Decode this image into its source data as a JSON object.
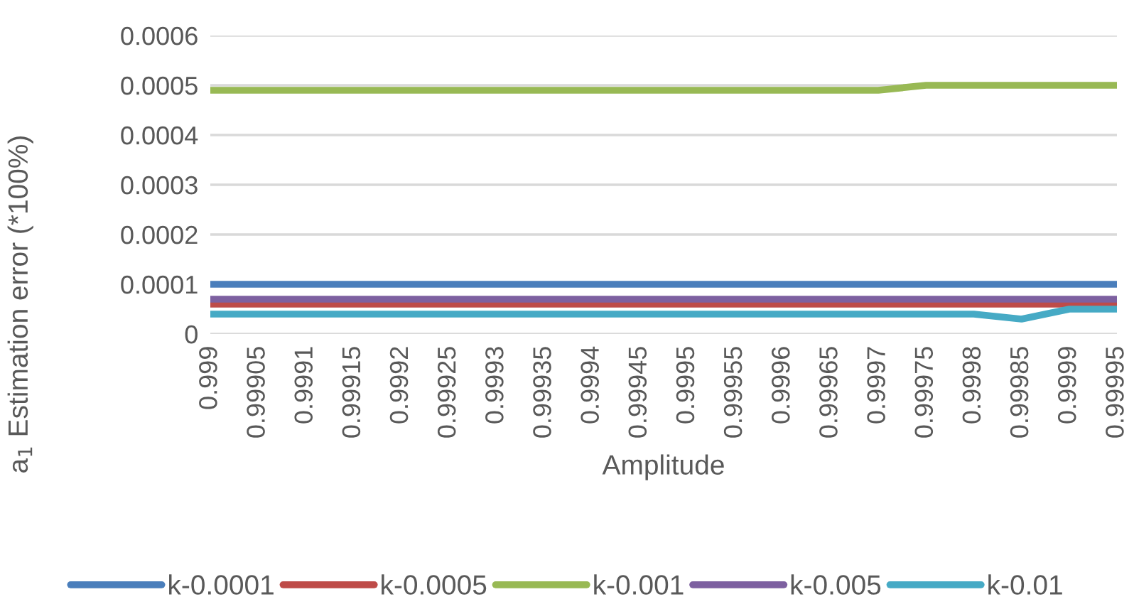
{
  "chart_data": {
    "type": "line",
    "xlabel": "Amplitude",
    "ylabel": "a$_{1}$ Estimation error (*100%)",
    "categories": [
      "0.999",
      "0.99905",
      "0.9991",
      "0.99915",
      "0.9992",
      "0.99925",
      "0.9993",
      "0.99935",
      "0.9994",
      "0.99945",
      "0.9995",
      "0.99955",
      "0.9996",
      "0.99965",
      "0.9997",
      "0.99975",
      "0.9998",
      "0.99985",
      "0.9999",
      "0.99995"
    ],
    "series": [
      {
        "name": "k-0.0001",
        "color": "#4a7ebb",
        "values": [
          0.0001,
          0.0001,
          0.0001,
          0.0001,
          0.0001,
          0.0001,
          0.0001,
          0.0001,
          0.0001,
          0.0001,
          0.0001,
          0.0001,
          0.0001,
          0.0001,
          0.0001,
          0.0001,
          0.0001,
          0.0001,
          0.0001,
          0.0001
        ]
      },
      {
        "name": "k-0.0005",
        "color": "#be4b48",
        "values": [
          6e-05,
          6e-05,
          6e-05,
          6e-05,
          6e-05,
          6e-05,
          6e-05,
          6e-05,
          6e-05,
          6e-05,
          6e-05,
          6e-05,
          6e-05,
          6e-05,
          6e-05,
          6e-05,
          6e-05,
          6e-05,
          6e-05,
          6e-05
        ]
      },
      {
        "name": "k-0.001",
        "color": "#98b954",
        "values": [
          0.00049,
          0.00049,
          0.00049,
          0.00049,
          0.00049,
          0.00049,
          0.00049,
          0.00049,
          0.00049,
          0.00049,
          0.00049,
          0.00049,
          0.00049,
          0.00049,
          0.00049,
          0.0005,
          0.0005,
          0.0005,
          0.0005,
          0.0005
        ]
      },
      {
        "name": "k-0.005",
        "color": "#7d60a0",
        "values": [
          7e-05,
          7e-05,
          7e-05,
          7e-05,
          7e-05,
          7e-05,
          7e-05,
          7e-05,
          7e-05,
          7e-05,
          7e-05,
          7e-05,
          7e-05,
          7e-05,
          7e-05,
          7e-05,
          7e-05,
          7e-05,
          7e-05,
          7e-05
        ]
      },
      {
        "name": "k-0.01",
        "color": "#46aac5",
        "values": [
          4e-05,
          4e-05,
          4e-05,
          4e-05,
          4e-05,
          4e-05,
          4e-05,
          4e-05,
          4e-05,
          4e-05,
          4e-05,
          4e-05,
          4e-05,
          4e-05,
          4e-05,
          4e-05,
          4e-05,
          3e-05,
          5e-05,
          5e-05
        ]
      }
    ],
    "ylim": [
      0,
      0.0006
    ],
    "yticks": [
      0,
      0.0001,
      0.0002,
      0.0003,
      0.0004,
      0.0005,
      0.0006
    ],
    "grid": "y",
    "legend": "bottom",
    "marker": "none",
    "line_style": "solid"
  }
}
